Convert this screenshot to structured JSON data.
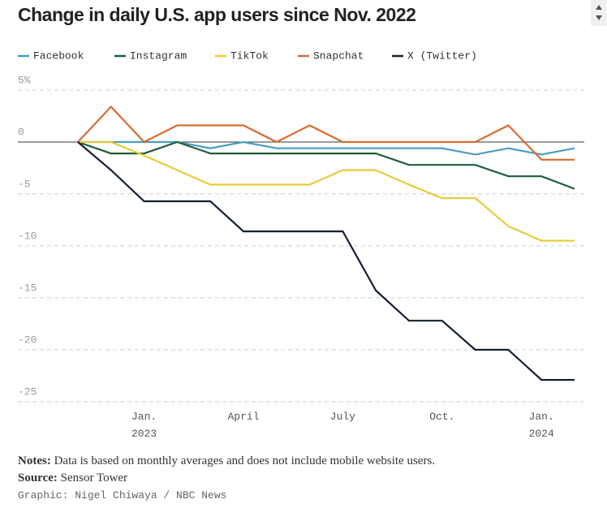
{
  "chart_data": {
    "type": "line",
    "title": "Change in daily U.S. app users since Nov. 2022",
    "categories": [
      null,
      null,
      "Jan. 2023",
      null,
      null,
      "April",
      null,
      null,
      "July",
      null,
      null,
      "Oct.",
      null,
      null,
      "Jan. 2024",
      null
    ],
    "series": [
      {
        "name": "Facebook",
        "color": "#4a9cc0",
        "values": [
          0,
          0,
          0,
          0,
          -0.6,
          0,
          -0.6,
          -0.6,
          -0.6,
          -0.6,
          -0.6,
          -0.6,
          -1.2,
          -0.6,
          -1.2,
          -0.6
        ]
      },
      {
        "name": "Instagram",
        "color": "#1e5e3a",
        "values": [
          0,
          -1.1,
          -1.1,
          0,
          -1.1,
          -1.1,
          -1.1,
          -1.1,
          -1.1,
          -1.1,
          -2.2,
          -2.2,
          -2.2,
          -3.3,
          -3.3,
          -4.5
        ]
      },
      {
        "name": "TikTok",
        "color": "#e8cb3a",
        "values": [
          0,
          0,
          -1.3,
          -2.7,
          -4.1,
          -4.1,
          -4.1,
          -4.1,
          -2.7,
          -2.7,
          -4.1,
          -5.4,
          -5.4,
          -8.1,
          -9.5,
          -9.5
        ]
      },
      {
        "name": "Snapchat",
        "color": "#d96c2e",
        "values": [
          0,
          3.4,
          0,
          1.6,
          1.6,
          1.6,
          0,
          1.6,
          0,
          0,
          0,
          0,
          0,
          1.6,
          -1.7,
          -1.7
        ]
      },
      {
        "name": "X (Twitter)",
        "color": "#142033",
        "values": [
          0,
          -2.7,
          -5.7,
          -5.7,
          -5.7,
          -8.6,
          -8.6,
          -8.6,
          -8.6,
          -14.3,
          -17.2,
          -17.2,
          -20,
          -20,
          -22.9,
          -22.9
        ]
      }
    ],
    "ylim": [
      -25,
      5
    ],
    "yticks": [
      {
        "value": 5,
        "label": "5%"
      },
      0,
      -5,
      -10,
      -15,
      -20,
      -25
    ],
    "grid": true
  },
  "notes": {
    "label": "Notes:",
    "text": "Data is based on monthly averages and does not include mobile website users."
  },
  "source": {
    "label": "Source:",
    "text": "Sensor Tower"
  },
  "credit": "Graphic: Nigel Chiwaya / NBC News"
}
